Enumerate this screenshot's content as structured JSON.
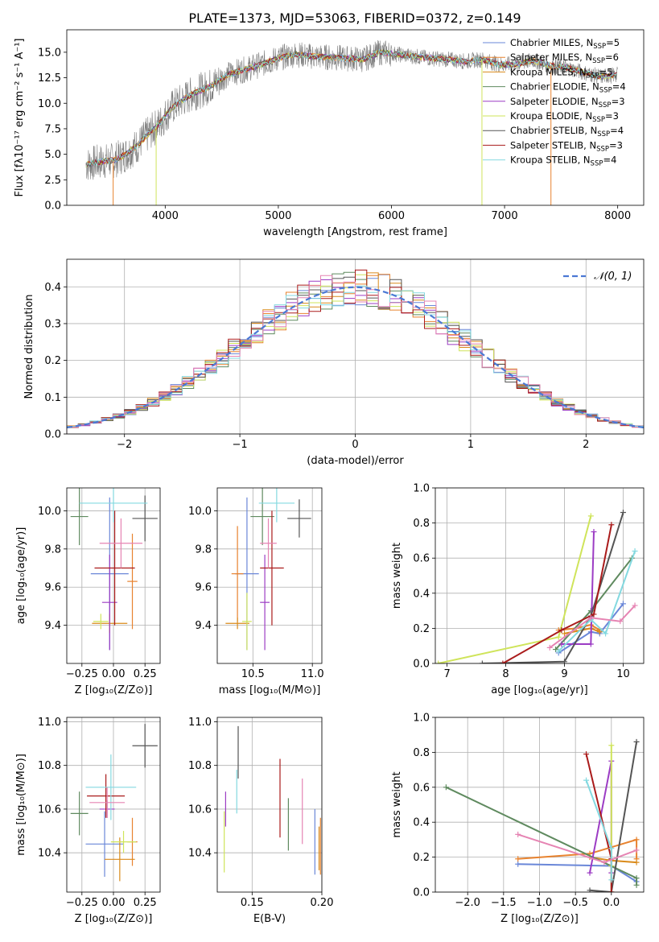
{
  "figure": {
    "title": "PLATE=1373, MJD=53063, FIBERID=0372, z=0.149"
  },
  "colors": {
    "Chabrier MILES": "#6a87d8",
    "Salpeter MILES": "#e8832f",
    "Kroupa MILES": "#d98a1a",
    "Chabrier ELODIE": "#5f8a5f",
    "Salpeter ELODIE": "#9c3cc4",
    "Kroupa ELODIE": "#cfe45a",
    "Chabrier STELIB": "#555555",
    "Salpeter STELIB": "#aa1b1b",
    "Kroupa STELIB": "#84d9e0",
    "pink": "#e684b3",
    "data": "#7f7f7f",
    "normal": "#4b78d4"
  },
  "chart_data": [
    {
      "id": "spectrum",
      "type": "line",
      "title": "PLATE=1373, MJD=53063, FIBERID=0372, z=0.149",
      "xlabel": "wavelength [Angstrom, rest frame]",
      "ylabel": "Flux [fλ10⁻¹⁷ erg cm⁻² s⁻¹ A⁻¹]",
      "xlim": [
        3130,
        8230
      ],
      "ylim": [
        0,
        17.2
      ],
      "xticks": [
        4000,
        5000,
        6000,
        7000,
        8000
      ],
      "yticks": [
        0.0,
        2.5,
        5.0,
        7.5,
        10.0,
        12.5,
        15.0
      ],
      "ytick_labels": [
        "0.0",
        "2.5",
        "5.0",
        "7.5",
        "10.0",
        "12.5",
        "15.0"
      ],
      "legend_position": "top-right",
      "continuum": {
        "x": [
          3300,
          3450,
          3550,
          3650,
          3750,
          3850,
          3950,
          4050,
          4150,
          4250,
          4350,
          4450,
          4550,
          4700,
          4850,
          5000,
          5150,
          5300,
          5450,
          5600,
          5750,
          5900,
          6050,
          6200,
          6350,
          6500,
          6650,
          6800,
          6950,
          7100,
          7250,
          7400,
          7550,
          7700,
          7850,
          8000
        ],
        "y": [
          4.0,
          4.3,
          4.4,
          5.0,
          5.8,
          7.0,
          8.0,
          9.5,
          10.3,
          11.0,
          11.4,
          12.0,
          12.8,
          13.3,
          13.8,
          14.4,
          14.8,
          14.6,
          14.5,
          14.4,
          14.3,
          15.0,
          14.8,
          14.6,
          14.4,
          14.3,
          14.1,
          14.3,
          13.8,
          13.8,
          14.2,
          13.7,
          13.5,
          13.0,
          12.6,
          12.8
        ]
      },
      "series": [
        {
          "name": "Chabrier MILES, N_SSP=5",
          "label_main": "Chabrier MILES, N",
          "label_sub": "SSP",
          "label_tail": "=5"
        },
        {
          "name": "Salpeter MILES, N_SSP=6",
          "label_main": "Salpeter MILES, N",
          "label_sub": "SSP",
          "label_tail": "=6"
        },
        {
          "name": "Kroupa MILES, N_SSP=5",
          "label_main": "Kroupa MILES, N",
          "label_sub": "SSP",
          "label_tail": "=5"
        },
        {
          "name": "Chabrier ELODIE, N_SSP=4",
          "label_main": "Chabrier ELODIE, N",
          "label_sub": "SSP",
          "label_tail": "=4"
        },
        {
          "name": "Salpeter ELODIE, N_SSP=3",
          "label_main": "Salpeter ELODIE, N",
          "label_sub": "SSP",
          "label_tail": "=3"
        },
        {
          "name": "Kroupa ELODIE, N_SSP=3",
          "label_main": "Kroupa ELODIE, N",
          "label_sub": "SSP",
          "label_tail": "=3"
        },
        {
          "name": "Chabrier STELIB, N_SSP=4",
          "label_main": "Chabrier STELIB, N",
          "label_sub": "SSP",
          "label_tail": "=4"
        },
        {
          "name": "Salpeter STELIB, N_SSP=3",
          "label_main": "Salpeter STELIB, N",
          "label_sub": "SSP",
          "label_tail": "=3"
        },
        {
          "name": "Kroupa STELIB, N_SSP=4",
          "label_main": "Kroupa STELIB, N",
          "label_sub": "SSP",
          "label_tail": "=4"
        }
      ]
    },
    {
      "id": "residuals",
      "type": "histogram",
      "xlabel": "(data-model)/error",
      "ylabel": "Normed distribution",
      "xlim": [
        -2.5,
        2.5
      ],
      "ylim": [
        0,
        0.475
      ],
      "xticks": [
        -2,
        -1,
        0,
        1,
        2
      ],
      "xtick_labels": [
        "−2",
        "−1",
        "0",
        "1",
        "2"
      ],
      "yticks": [
        0.0,
        0.1,
        0.2,
        0.3,
        0.4
      ],
      "ytick_labels": [
        "0.0",
        "0.1",
        "0.2",
        "0.3",
        "0.4"
      ],
      "legend": {
        "label": "𝒩(0, 1)",
        "position": "top-right"
      },
      "bin_width": 0.1
    },
    {
      "id": "age_vs_Z",
      "type": "errorbar",
      "xlabel": "Z [log₁₀(Z/Z⊙)]",
      "ylabel": "age  [log₁₀(age/yr)]",
      "xlim": [
        -0.37,
        0.37
      ],
      "ylim": [
        9.2,
        10.12
      ],
      "xticks": [
        -0.25,
        0.0,
        0.25
      ],
      "xtick_labels": [
        "−0.25",
        "0.00",
        "0.25"
      ],
      "yticks": [
        9.4,
        9.6,
        9.8,
        10.0
      ],
      "ytick_labels": [
        "9.4",
        "9.6",
        "9.8",
        "10.0"
      ],
      "points": [
        {
          "series": "Chabrier MILES",
          "x": -0.03,
          "xerr": 0.15,
          "y": 9.67,
          "yerr": 0.4
        },
        {
          "series": "Salpeter MILES",
          "x": 0.15,
          "xerr": 0.04,
          "y": 9.63,
          "yerr": 0.25
        },
        {
          "series": "Kroupa MILES",
          "x": -0.03,
          "xerr": 0.14,
          "y": 9.41,
          "yerr": 0.05
        },
        {
          "series": "Chabrier ELODIE",
          "x": -0.27,
          "xerr": 0.07,
          "y": 9.97,
          "yerr": 0.15
        },
        {
          "series": "Salpeter ELODIE",
          "x": -0.03,
          "xerr": 0.06,
          "y": 9.52,
          "yerr": 0.25
        },
        {
          "series": "Kroupa ELODIE",
          "x": -0.1,
          "xerr": 0.06,
          "y": 9.42,
          "yerr": 0.04
        },
        {
          "series": "Chabrier STELIB",
          "x": 0.25,
          "xerr": 0.1,
          "y": 9.96,
          "yerr": 0.12
        },
        {
          "series": "Salpeter STELIB",
          "x": 0.01,
          "xerr": 0.16,
          "y": 9.7,
          "yerr": 0.3
        },
        {
          "series": "Kroupa STELIB",
          "x": 0.0,
          "xerr": 0.27,
          "y": 10.04,
          "yerr": 0.1
        },
        {
          "series": "pink",
          "x": 0.06,
          "xerr": 0.17,
          "y": 9.83,
          "yerr": 0.13
        }
      ]
    },
    {
      "id": "age_vs_mass",
      "type": "errorbar",
      "xlabel": "mass [log₁₀(M/M⊙)]",
      "xlim": [
        10.2,
        11.08
      ],
      "ylim": [
        9.2,
        10.12
      ],
      "xticks": [
        10.5,
        11.0
      ],
      "xtick_labels": [
        "10.5",
        "11.0"
      ],
      "yticks": [
        9.4,
        9.6,
        9.8,
        10.0
      ],
      "ytick_labels": [
        "9.4",
        "9.6",
        "9.8",
        "10.0"
      ],
      "points": [
        {
          "series": "Chabrier MILES",
          "x": 10.45,
          "xerr": 0.1,
          "y": 9.67,
          "yerr": 0.4
        },
        {
          "series": "Salpeter MILES",
          "x": 10.37,
          "xerr": 0.05,
          "y": 9.67,
          "yerr": 0.25
        },
        {
          "series": "Kroupa MILES",
          "x": 10.37,
          "xerr": 0.1,
          "y": 9.41,
          "yerr": 0.03
        },
        {
          "series": "Chabrier ELODIE",
          "x": 10.58,
          "xerr": 0.1,
          "y": 9.97,
          "yerr": 0.15
        },
        {
          "series": "Salpeter ELODIE",
          "x": 10.6,
          "xerr": 0.04,
          "y": 9.52,
          "yerr": 0.25
        },
        {
          "series": "Kroupa ELODIE",
          "x": 10.45,
          "xerr": 0.04,
          "y": 9.42,
          "yerr": 0.15
        },
        {
          "series": "Chabrier STELIB",
          "x": 10.89,
          "xerr": 0.1,
          "y": 9.96,
          "yerr": 0.1
        },
        {
          "series": "Salpeter STELIB",
          "x": 10.66,
          "xerr": 0.1,
          "y": 9.7,
          "yerr": 0.3
        },
        {
          "series": "Kroupa STELIB",
          "x": 10.7,
          "xerr": 0.15,
          "y": 10.04,
          "yerr": 0.1
        },
        {
          "series": "pink",
          "x": 10.63,
          "xerr": 0.07,
          "y": 9.83,
          "yerr": 0.13
        }
      ]
    },
    {
      "id": "weight_vs_age",
      "type": "line",
      "xlabel": "age  [log₁₀(age/yr)]",
      "ylabel": "mass weight",
      "xlim": [
        6.8,
        10.35
      ],
      "ylim": [
        0,
        1
      ],
      "xticks": [
        7,
        8,
        9,
        10
      ],
      "xtick_labels": [
        "7",
        "8",
        "9",
        "10"
      ],
      "yticks": [
        0.0,
        0.2,
        0.4,
        0.6,
        0.8,
        1.0
      ],
      "ytick_labels": [
        "0.0",
        "0.2",
        "0.4",
        "0.6",
        "0.8",
        "1.0"
      ],
      "series": [
        {
          "name": "Chabrier MILES",
          "x": [
            8.9,
            9.45,
            9.6,
            10.0
          ],
          "y": [
            0.06,
            0.18,
            0.17,
            0.34
          ]
        },
        {
          "name": "Salpeter MILES",
          "x": [
            8.9,
            9.2,
            9.45,
            9.6
          ],
          "y": [
            0.19,
            0.2,
            0.22,
            0.19
          ]
        },
        {
          "name": "Kroupa MILES",
          "x": [
            9.0,
            9.45,
            9.6
          ],
          "y": [
            0.17,
            0.2,
            0.18
          ]
        },
        {
          "name": "Chabrier ELODIE",
          "x": [
            8.85,
            9.45,
            10.15
          ],
          "y": [
            0.08,
            0.3,
            0.6
          ]
        },
        {
          "name": "Salpeter ELODIE",
          "x": [
            8.95,
            9.45,
            9.5
          ],
          "y": [
            0.11,
            0.11,
            0.75
          ]
        },
        {
          "name": "Kroupa ELODIE",
          "x": [
            6.85,
            8.9,
            9.45
          ],
          "y": [
            0.0,
            0.15,
            0.84
          ]
        },
        {
          "name": "Chabrier STELIB",
          "x": [
            7.6,
            9.0,
            9.45,
            10.0
          ],
          "y": [
            0.0,
            0.01,
            0.27,
            0.86
          ]
        },
        {
          "name": "Salpeter STELIB",
          "x": [
            7.95,
            8.95,
            9.5,
            9.8
          ],
          "y": [
            0.0,
            0.19,
            0.28,
            0.79
          ]
        },
        {
          "name": "Kroupa STELIB",
          "x": [
            8.9,
            9.45,
            9.7,
            10.2
          ],
          "y": [
            0.07,
            0.25,
            0.17,
            0.64
          ]
        },
        {
          "name": "pink",
          "x": [
            8.75,
            9.45,
            9.95,
            10.2
          ],
          "y": [
            0.09,
            0.26,
            0.24,
            0.33
          ]
        }
      ]
    },
    {
      "id": "mass_vs_Z",
      "type": "errorbar",
      "xlabel": "Z [log₁₀(Z/Z⊙)]",
      "ylabel": "mass [log₁₀(M/M⊙)]",
      "xlim": [
        -0.37,
        0.37
      ],
      "ylim": [
        10.22,
        11.02
      ],
      "xticks": [
        -0.25,
        0.0,
        0.25
      ],
      "xtick_labels": [
        "−0.25",
        "0.00",
        "0.25"
      ],
      "yticks": [
        10.4,
        10.6,
        10.8,
        11.0
      ],
      "ytick_labels": [
        "10.4",
        "10.6",
        "10.8",
        "11.0"
      ],
      "points": [
        {
          "series": "Chabrier MILES",
          "x": -0.07,
          "xerr": 0.15,
          "y": 10.44,
          "yerr": 0.15
        },
        {
          "series": "Salpeter MILES",
          "x": 0.15,
          "xerr": 0.04,
          "y": 10.45,
          "yerr": 0.11
        },
        {
          "series": "Kroupa MILES",
          "x": 0.05,
          "xerr": 0.12,
          "y": 10.37,
          "yerr": 0.1
        },
        {
          "series": "Chabrier ELODIE",
          "x": -0.27,
          "xerr": 0.07,
          "y": 10.58,
          "yerr": 0.1
        },
        {
          "series": "Salpeter ELODIE",
          "x": -0.05,
          "xerr": 0.06,
          "y": 10.6,
          "yerr": 0.04
        },
        {
          "series": "Kroupa ELODIE",
          "x": 0.08,
          "xerr": 0.1,
          "y": 10.45,
          "yerr": 0.05
        },
        {
          "series": "Chabrier STELIB",
          "x": 0.25,
          "xerr": 0.1,
          "y": 10.89,
          "yerr": 0.1
        },
        {
          "series": "Salpeter STELIB",
          "x": -0.06,
          "xerr": 0.15,
          "y": 10.66,
          "yerr": 0.1
        },
        {
          "series": "Kroupa STELIB",
          "x": -0.02,
          "xerr": 0.2,
          "y": 10.7,
          "yerr": 0.15
        },
        {
          "series": "pink",
          "x": -0.05,
          "xerr": 0.14,
          "y": 10.63,
          "yerr": 0.07
        }
      ]
    },
    {
      "id": "mass_vs_ebv",
      "type": "errorbar",
      "xlabel": "E(B-V)",
      "xlim": [
        0.125,
        0.2
      ],
      "ylim": [
        10.22,
        11.02
      ],
      "xticks": [
        0.15,
        0.2
      ],
      "xtick_labels": [
        "0.15",
        "0.20"
      ],
      "yticks": [
        10.4,
        10.6,
        10.8,
        11.0
      ],
      "ytick_labels": [
        "10.4",
        "10.6",
        "10.8",
        "11.0"
      ],
      "points": [
        {
          "series": "Chabrier MILES",
          "x": 0.195,
          "y": 10.45,
          "yerr": 0.15
        },
        {
          "series": "Salpeter MILES",
          "x": 0.199,
          "y": 10.43,
          "yerr": 0.13
        },
        {
          "series": "Kroupa MILES",
          "x": 0.198,
          "y": 10.42,
          "yerr": 0.1
        },
        {
          "series": "Chabrier ELODIE",
          "x": 0.176,
          "y": 10.53,
          "yerr": 0.12
        },
        {
          "series": "Salpeter ELODIE",
          "x": 0.131,
          "y": 10.6,
          "yerr": 0.08
        },
        {
          "series": "Kroupa ELODIE",
          "x": 0.13,
          "y": 10.45,
          "yerr": 0.14
        },
        {
          "series": "Chabrier STELIB",
          "x": 0.14,
          "y": 10.86,
          "yerr": 0.12
        },
        {
          "series": "Salpeter STELIB",
          "x": 0.17,
          "y": 10.65,
          "yerr": 0.18
        },
        {
          "series": "Kroupa STELIB",
          "x": 0.139,
          "y": 10.68,
          "yerr": 0.1
        },
        {
          "series": "pink",
          "x": 0.186,
          "y": 10.59,
          "yerr": 0.15
        }
      ]
    },
    {
      "id": "weight_vs_Z",
      "type": "line",
      "xlabel": "Z [log₁₀(Z/Z⊙)]",
      "ylabel": "mass weight",
      "xlim": [
        -2.45,
        0.45
      ],
      "ylim": [
        0,
        1
      ],
      "xticks": [
        -2.0,
        -1.5,
        -1.0,
        -0.5,
        0.0
      ],
      "xtick_labels": [
        "−2.0",
        "−1.5",
        "−1.0",
        "−0.5",
        "0.0"
      ],
      "yticks": [
        0.0,
        0.2,
        0.4,
        0.6,
        0.8,
        1.0
      ],
      "ytick_labels": [
        "0.0",
        "0.2",
        "0.4",
        "0.6",
        "0.8",
        "1.0"
      ],
      "series": [
        {
          "name": "Chabrier MILES",
          "x": [
            -1.3,
            0.0,
            0.35
          ],
          "y": [
            0.16,
            0.15,
            0.06
          ]
        },
        {
          "name": "Salpeter MILES",
          "x": [
            -1.3,
            -0.3,
            0.35,
            0.35
          ],
          "y": [
            0.19,
            0.22,
            0.3,
            0.19
          ]
        },
        {
          "name": "Kroupa MILES",
          "x": [
            -0.3,
            0.0,
            0.35
          ],
          "y": [
            0.2,
            0.18,
            0.17
          ]
        },
        {
          "name": "Chabrier ELODIE",
          "x": [
            -2.3,
            0.35,
            0.35
          ],
          "y": [
            0.6,
            0.08,
            0.04
          ]
        },
        {
          "name": "Salpeter ELODIE",
          "x": [
            -0.3,
            0.0,
            0.0
          ],
          "y": [
            0.11,
            0.75,
            0.11
          ]
        },
        {
          "name": "Kroupa ELODIE",
          "x": [
            0.0,
            0.0,
            0.0
          ],
          "y": [
            0.84,
            0.15,
            0.0
          ]
        },
        {
          "name": "Chabrier STELIB",
          "x": [
            -0.3,
            0.0,
            0.35
          ],
          "y": [
            0.01,
            0.0,
            0.86
          ]
        },
        {
          "name": "Salpeter STELIB",
          "x": [
            -0.35,
            0.0,
            0.0
          ],
          "y": [
            0.79,
            0.19,
            0.0
          ]
        },
        {
          "name": "Kroupa STELIB",
          "x": [
            -0.35,
            0.0,
            0.0
          ],
          "y": [
            0.64,
            0.25,
            0.07
          ]
        },
        {
          "name": "pink",
          "x": [
            -1.3,
            -0.1,
            0.35
          ],
          "y": [
            0.33,
            0.17,
            0.24
          ]
        }
      ]
    }
  ]
}
